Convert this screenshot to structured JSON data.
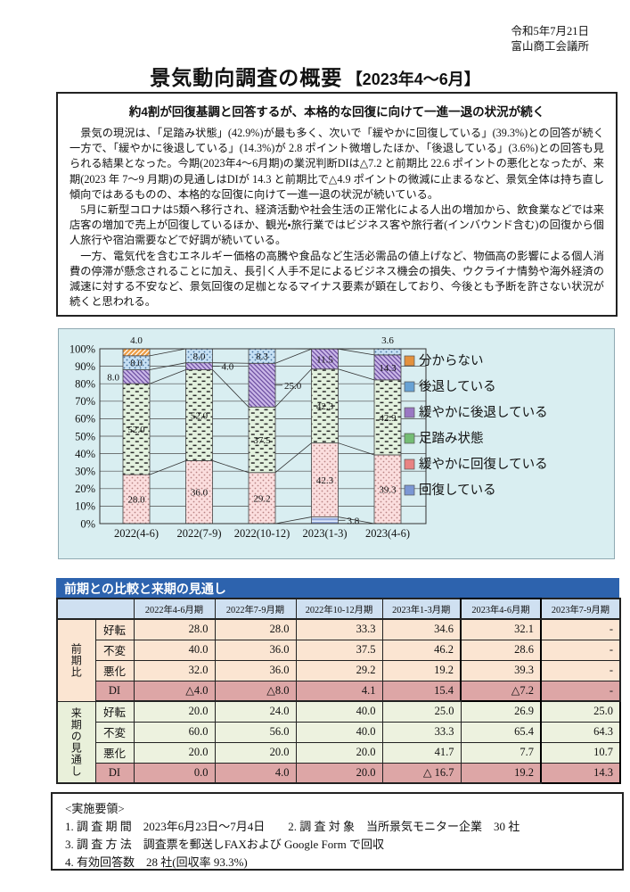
{
  "page": {
    "date": "令和5年7月21日",
    "org": "富山商工会議所",
    "title_main": "景気動向調査の概要",
    "title_period": "【2023年4～6月】"
  },
  "summary": {
    "heading": "約4割が回復基調と回答するが、本格的な回復に向けて一進一退の状況が続く",
    "paragraphs": [
      "景気の現況は、「足踏み状態」(42.9%)が最も多く、次いで「緩やかに回復している」(39.3%)との回答が続く一方で、「緩やかに後退している」(14.3%)が 2.8 ポイント微増したほか、「後退している」(3.6%)との回答も見られる結果となった。今期(2023年4～6月期)の業況判断DIは△7.2 と前期比 22.6 ポイントの悪化となったが、来期(2023 年 7～9 月期)の見通しはDIが 14.3 と前期比で△4.9 ポイントの微減に止まるなど、景気全体は持ち直し傾向ではあるものの、本格的な回復に向けて一進一退の状況が続いている。",
      "5月に新型コロナは5類へ移行され、経済活動や社会生活の正常化による人出の増加から、飲食業などでは来店客の増加で売上が回復しているほか、観光・旅行業ではビジネス客や旅行者(インバウンド含む)の回復から個人旅行や宿泊需要などで好調が続いている。",
      "一方、電気代を含むエネルギー価格の高騰や食品など生活必需品の値上げなど、物価高の影響による個人消費の停滞が懸念されることに加え、長引く人手不足によるビジネス機会の損失、ウクライナ情勢や海外経済の減速に対する不安など、景気回復の足枷となるマイナス要素が顕在しており、今後とも予断を許さない状況が続くと思われる。"
    ]
  },
  "chart_data": {
    "type": "bar",
    "stacked": true,
    "unit": "%",
    "categories": [
      "2022(4-6)",
      "2022(7-9)",
      "2022(10-12)",
      "2023(1-3)",
      "2023(4-6)"
    ],
    "series": [
      {
        "name": "回復している",
        "color": "#7b97d4",
        "values": [
          0.0,
          0.0,
          0.0,
          3.8,
          0.0
        ]
      },
      {
        "name": "緩やかに回復している",
        "color": "#e88383",
        "values": [
          28.0,
          36.0,
          29.2,
          42.3,
          39.3
        ]
      },
      {
        "name": "足踏み状態",
        "color": "#74bd74",
        "values": [
          52.0,
          52.0,
          37.5,
          42.3,
          42.9
        ]
      },
      {
        "name": "緩やかに後退している",
        "color": "#9a77c3",
        "values": [
          8.0,
          4.0,
          25.0,
          11.5,
          14.3
        ]
      },
      {
        "name": "後退している",
        "color": "#68a2d4",
        "values": [
          8.0,
          8.0,
          8.3,
          0.0,
          3.6
        ]
      },
      {
        "name": "分からない",
        "color": "#e3913d",
        "values": [
          4.0,
          0.0,
          0.0,
          0.0,
          0.0
        ]
      }
    ],
    "annotations": [
      {
        "text": "4.0",
        "bar": 0,
        "series": "分からない",
        "position": "above"
      },
      {
        "text": "8.0",
        "bar": 0,
        "series": "緩やかに後退している",
        "position": "left"
      },
      {
        "text": "4.0",
        "bar": 1,
        "series": "緩やかに後退している",
        "position": "right"
      },
      {
        "text": "25.0",
        "bar": 2,
        "series": "緩やかに後退している",
        "position": "right"
      },
      {
        "text": "3.8",
        "bar": 3,
        "series": "回復している",
        "position": "right"
      },
      {
        "text": "3.6",
        "bar": 4,
        "series": "後退している",
        "position": "above"
      }
    ],
    "ylim": [
      0,
      100
    ],
    "yticks": [
      "100%",
      "90%",
      "80%",
      "70%",
      "60%",
      "50%",
      "40%",
      "30%",
      "20%",
      "10%",
      "0%"
    ],
    "legend": [
      "分からない",
      "後退している",
      "緩やかに後退している",
      "足踏み状態",
      "緩やかに回復している",
      "回復している"
    ],
    "legend_position": "right",
    "grid": true
  },
  "table": {
    "title": "前期との比較と来期の見通し",
    "col_headers": [
      "2022年4-6月期",
      "2022年7-9月期",
      "2022年10-12月期",
      "2023年1-3月期",
      "2023年4-6月期",
      "2023年7-9月期"
    ],
    "groups": [
      {
        "label": "前期比",
        "rows": [
          {
            "label": "好転",
            "values": [
              "28.0",
              "28.0",
              "33.3",
              "34.6",
              "32.1",
              "-"
            ]
          },
          {
            "label": "不変",
            "values": [
              "40.0",
              "36.0",
              "37.5",
              "46.2",
              "28.6",
              "-"
            ]
          },
          {
            "label": "悪化",
            "values": [
              "32.0",
              "36.0",
              "29.2",
              "19.2",
              "39.3",
              "-"
            ]
          },
          {
            "label": "DI",
            "values": [
              "△4.0",
              "△8.0",
              "4.1",
              "15.4",
              "△7.2",
              "-"
            ]
          }
        ]
      },
      {
        "label": "来期の見通し",
        "rows": [
          {
            "label": "好転",
            "values": [
              "20.0",
              "24.0",
              "40.0",
              "25.0",
              "26.9",
              "25.0"
            ]
          },
          {
            "label": "不変",
            "values": [
              "60.0",
              "56.0",
              "40.0",
              "33.3",
              "65.4",
              "64.3"
            ]
          },
          {
            "label": "悪化",
            "values": [
              "20.0",
              "20.0",
              "20.0",
              "41.7",
              "7.7",
              "10.7"
            ]
          },
          {
            "label": "DI",
            "values": [
              "0.0",
              "4.0",
              "20.0",
              "△ 16.7",
              "19.2",
              "14.3"
            ]
          }
        ]
      }
    ],
    "highlight": {
      "group0_col": 4,
      "group1_col": 5
    }
  },
  "notes": {
    "heading": "<実施要領>",
    "lines": [
      "1. 調 査 期 間　2023年6月23日～7月4日　　2. 調 査 対 象　当所景気モニター企業　30 社",
      "3. 調 査 方 法　調査票を郵送しFAXおよび Google Form で回収",
      "4. 有効回答数　28 社(回収率 93.3%)"
    ]
  },
  "colors": {
    "table_title_bg": "#2d63ae",
    "table_header_bg": "#cfe0f1",
    "table_group0_bg": "#fbe5d2",
    "table_group1_bg": "#edf2df",
    "table_di_bg": "#dda6a6",
    "chart_panel_bg": "#d9eef1"
  }
}
